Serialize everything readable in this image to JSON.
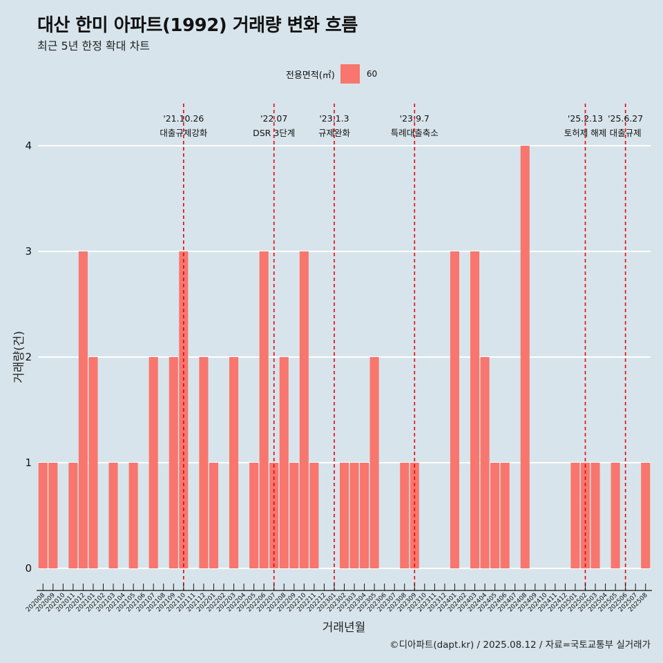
{
  "header": {
    "title": "대산 한미 아파트(1992) 거래량 변화 흐름",
    "subtitle": "최근 5년 한정 확대 차트"
  },
  "legend": {
    "title": "전용면적(㎡)",
    "label": "60",
    "color": "#f8766d"
  },
  "caption": "©디아파트(dapt.kr) / 2025.08.12 / 자료=국토교통부 실거래가",
  "chart_data": {
    "type": "bar",
    "xlabel": "거래년월",
    "ylabel": "거래량(건)",
    "ylim": [
      0,
      4
    ],
    "yticks": [
      0,
      1,
      2,
      3,
      4
    ],
    "grid": true,
    "categories": [
      "202008",
      "202009",
      "202010",
      "202011",
      "202012",
      "202101",
      "202102",
      "202103",
      "202104",
      "202105",
      "202106",
      "202107",
      "202108",
      "202109",
      "202110",
      "202111",
      "202112",
      "202201",
      "202202",
      "202203",
      "202204",
      "202205",
      "202206",
      "202207",
      "202208",
      "202209",
      "202210",
      "202211",
      "202212",
      "202301",
      "202302",
      "202303",
      "202304",
      "202305",
      "202306",
      "202307",
      "202308",
      "202309",
      "202310",
      "202311",
      "202312",
      "202401",
      "202402",
      "202403",
      "202404",
      "202405",
      "202406",
      "202407",
      "202408",
      "202409",
      "202410",
      "202411",
      "202412",
      "202501",
      "202502",
      "202503",
      "202504",
      "202505",
      "202506",
      "202507",
      "202508"
    ],
    "series": [
      {
        "name": "60",
        "color": "#f8766d",
        "values": [
          1,
          1,
          0,
          1,
          3,
          2,
          0,
          1,
          0,
          1,
          0,
          2,
          0,
          2,
          3,
          0,
          2,
          1,
          0,
          2,
          0,
          1,
          3,
          1,
          2,
          1,
          3,
          1,
          0,
          0,
          1,
          1,
          1,
          2,
          0,
          0,
          1,
          1,
          0,
          0,
          0,
          3,
          0,
          3,
          2,
          1,
          1,
          0,
          4,
          0,
          0,
          0,
          0,
          1,
          1,
          1,
          0,
          1,
          0,
          0,
          1
        ]
      }
    ],
    "events": [
      {
        "date": "'21.10.26",
        "label": "대출규제강화",
        "at": "202110"
      },
      {
        "date": "'22.07",
        "label": "DSR 3단계",
        "at": "202207"
      },
      {
        "date": "'23.1.3",
        "label": "규제완화",
        "at": "202301"
      },
      {
        "date": "'23.9.7",
        "label": "특례대출축소",
        "at": "202309"
      },
      {
        "date": "'25.2.13",
        "label": "토허제 해제",
        "at": "202502"
      },
      {
        "date": "'25.6.27",
        "label": "대출규제",
        "at": "202506"
      }
    ]
  }
}
